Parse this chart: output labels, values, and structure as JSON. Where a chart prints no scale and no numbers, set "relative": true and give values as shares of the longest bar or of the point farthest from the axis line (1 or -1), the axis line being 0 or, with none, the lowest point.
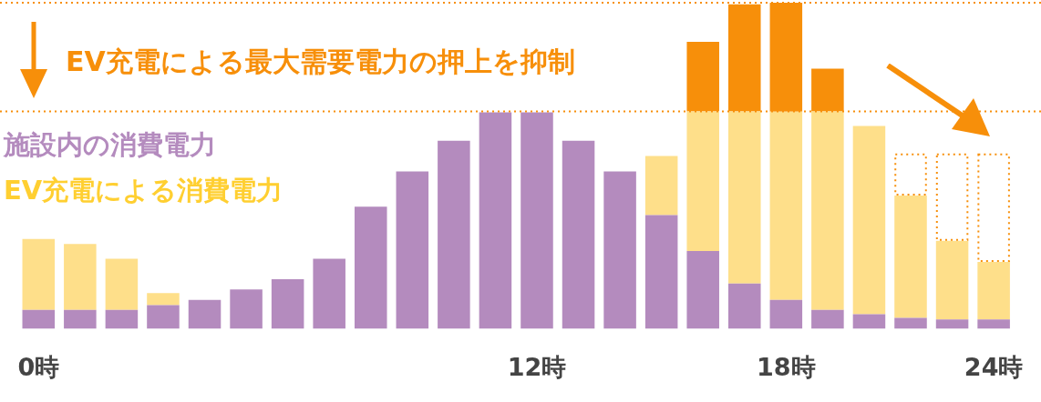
{
  "chart_data": {
    "type": "bar",
    "relative": true,
    "stacked": true,
    "legend": "left",
    "categories": [
      "0時",
      null,
      null,
      null,
      null,
      null,
      null,
      null,
      null,
      null,
      null,
      null,
      "12時",
      null,
      null,
      null,
      null,
      null,
      "18時",
      null,
      null,
      null,
      null,
      "24時"
    ],
    "series": [
      {
        "name": "施設内の消費電力",
        "color": "#b48bbe",
        "values": [
          0.058,
          0.058,
          0.058,
          0.073,
          0.089,
          0.121,
          0.152,
          0.215,
          0.375,
          0.483,
          0.577,
          0.664,
          0.664,
          0.577,
          0.483,
          0.349,
          0.239,
          0.139,
          0.089,
          0.058,
          0.045,
          0.034,
          0.029,
          0.029
        ]
      },
      {
        "name": "EV充電による消費電力",
        "color": "#fedf8a",
        "values": [
          0.218,
          0.202,
          0.157,
          0.037,
          0,
          0,
          0,
          0,
          0,
          0,
          0,
          0,
          0,
          0,
          0,
          0.181,
          0.428,
          0.528,
          0.577,
          0.609,
          0.577,
          0.375,
          0.241,
          0.176
        ]
      },
      {
        "color": "#f78f0a",
        "values": [
          0,
          0,
          0,
          0,
          0,
          0,
          0,
          0,
          0,
          0,
          0,
          0,
          0,
          0,
          0,
          0,
          0.213,
          0.328,
          0.334,
          0.131,
          0,
          0,
          0,
          0
        ]
      },
      {
        "color": "#f78f0a",
        "line_style": "dotted",
        "values": [
          0,
          0,
          0,
          0,
          0,
          0,
          0,
          0,
          0,
          0,
          0,
          0,
          0,
          0,
          0,
          0,
          0,
          0,
          0,
          0,
          0,
          0.129,
          0.268,
          0.333
        ]
      }
    ],
    "ref_lines": [
      {
        "axis": "y",
        "value": 0.667,
        "color": "#f78f0a",
        "line_style": "dotted"
      },
      {
        "axis": "y",
        "value": 1,
        "color": "#f78f0a",
        "line_style": "dotted"
      }
    ],
    "annotations": [
      "EV充電による最大需要電力の押上を抑制"
    ]
  }
}
